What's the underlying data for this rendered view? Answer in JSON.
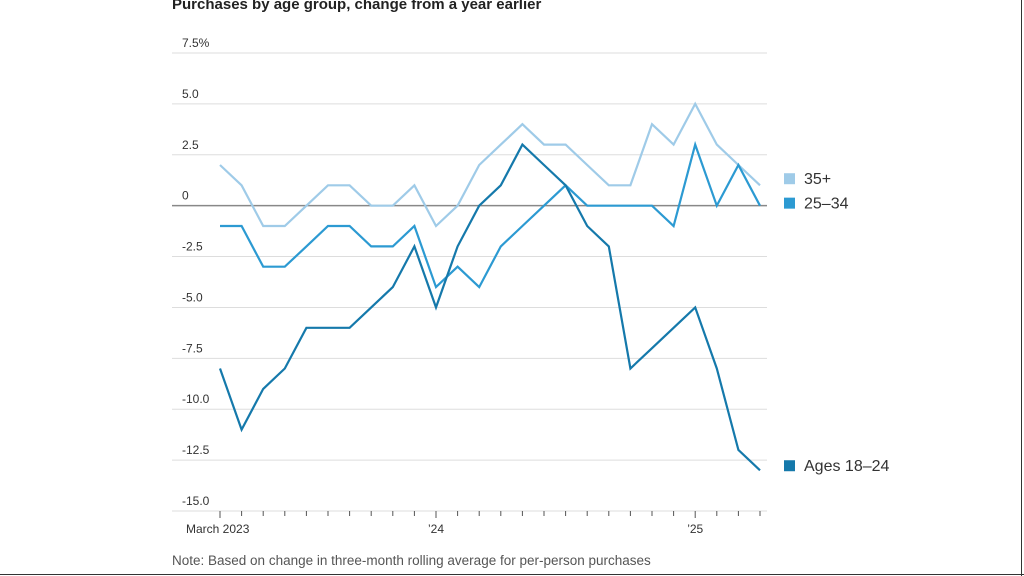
{
  "title": "Purchases by age group, change from a year earlier",
  "note": "Note: Based on change in three-month rolling average for per-person purchases",
  "chart_data": {
    "type": "line",
    "title": "Purchases by age group, change from a year earlier",
    "xlabel": "",
    "ylabel": "",
    "ylim": [
      -15,
      7.5
    ],
    "grid": true,
    "legend_placement": "right (at line ends)",
    "y_ticks": [
      "7.5%",
      "5.0",
      "2.5",
      "0",
      "-2.5",
      "-5.0",
      "-7.5",
      "-10.0",
      "-12.5",
      "-15.0"
    ],
    "y_tick_values": [
      7.5,
      5.0,
      2.5,
      0,
      -2.5,
      -5.0,
      -7.5,
      -10.0,
      -12.5,
      -15.0
    ],
    "x_labels": [
      {
        "label": "March 2023",
        "index": 0
      },
      {
        "label": "’24",
        "index": 10
      },
      {
        "label": "’25",
        "index": 22
      }
    ],
    "x": [
      "2023-03",
      "2023-04",
      "2023-05",
      "2023-06",
      "2023-07",
      "2023-08",
      "2023-09",
      "2023-10",
      "2023-11",
      "2023-12",
      "2024-01",
      "2024-02",
      "2024-03",
      "2024-04",
      "2024-05",
      "2024-06",
      "2024-07",
      "2024-08",
      "2024-09",
      "2024-10",
      "2024-11",
      "2024-12",
      "2025-01",
      "2025-02",
      "2025-03",
      "2025-04"
    ],
    "series": [
      {
        "name": "35+",
        "color": "#9fcbe8",
        "values": [
          2,
          1,
          -1,
          -1,
          0,
          1,
          1,
          0,
          0,
          1,
          -1,
          0,
          2,
          3,
          4,
          3,
          3,
          2,
          1,
          1,
          4,
          3,
          5,
          3,
          2,
          1
        ]
      },
      {
        "name": "25–34",
        "color": "#2c9ad2",
        "values": [
          -1,
          -1,
          -3,
          -3,
          -2,
          -1,
          -1,
          -2,
          -2,
          -1,
          -4,
          -3,
          -4,
          -2,
          -1,
          0,
          1,
          0,
          0,
          0,
          0,
          -1,
          3,
          0,
          2,
          0
        ]
      },
      {
        "name": "Ages 18–24",
        "color": "#1579ab",
        "values": [
          -8,
          -11,
          -9,
          -8,
          -6,
          -6,
          -6,
          -5,
          -4,
          -2,
          -5,
          -2,
          0,
          1,
          3,
          2,
          1,
          -1,
          -2,
          -8,
          -7,
          -6,
          -5,
          -8,
          -12,
          -13
        ]
      }
    ],
    "zero_line_color": "#888888",
    "grid_color": "#dddddd"
  }
}
